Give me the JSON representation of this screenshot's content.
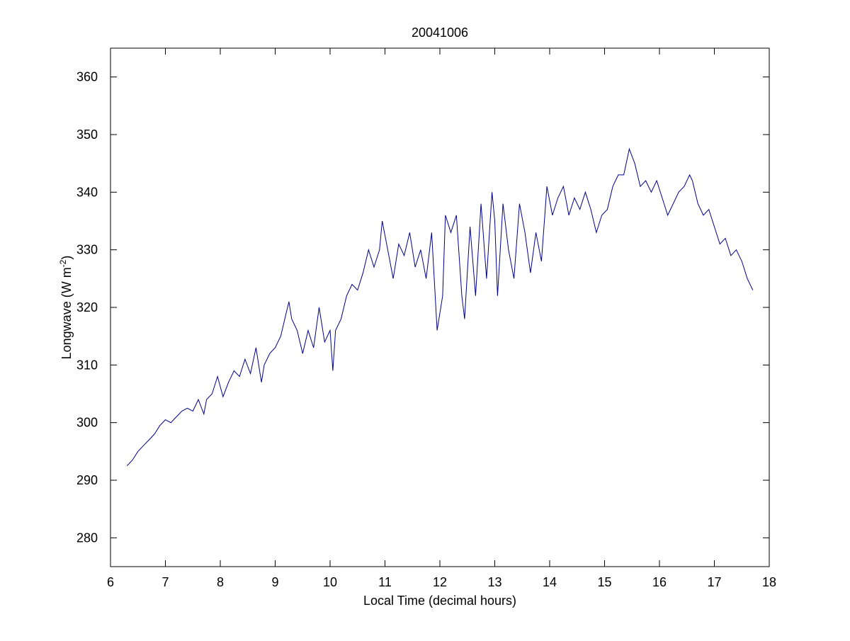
{
  "chart_data": {
    "type": "line",
    "title": "20041006",
    "xlabel": "Local Time (decimal hours)",
    "ylabel": "Longwave (W m",
    "ylabel_superscript": "-2",
    "ylabel_close": ")",
    "xlim": [
      6,
      18
    ],
    "ylim": [
      275,
      365
    ],
    "xticks": [
      6,
      7,
      8,
      9,
      10,
      11,
      12,
      13,
      14,
      15,
      16,
      17,
      18
    ],
    "yticks": [
      280,
      290,
      300,
      310,
      320,
      330,
      340,
      350,
      360
    ],
    "xtick_labels": [
      "6",
      "7",
      "8",
      "9",
      "10",
      "11",
      "12",
      "13",
      "14",
      "15",
      "16",
      "17",
      "18"
    ],
    "ytick_labels": [
      "280",
      "290",
      "300",
      "310",
      "320",
      "330",
      "340",
      "350",
      "360"
    ],
    "grid": false,
    "line_color": "#00008b",
    "series": [
      {
        "x": [
          6.3,
          6.4,
          6.5,
          6.6,
          6.7,
          6.8,
          6.9,
          7.0,
          7.1,
          7.2,
          7.3,
          7.4,
          7.5,
          7.6,
          7.7,
          7.75,
          7.85,
          7.95,
          8.05,
          8.15,
          8.25,
          8.35,
          8.45,
          8.55,
          8.65,
          8.75,
          8.8,
          8.9,
          9.0,
          9.1,
          9.2,
          9.25,
          9.3,
          9.4,
          9.5,
          9.6,
          9.7,
          9.8,
          9.9,
          10.0,
          10.05,
          10.1,
          10.2,
          10.3,
          10.4,
          10.5,
          10.6,
          10.7,
          10.8,
          10.9,
          10.95,
          11.05,
          11.15,
          11.25,
          11.35,
          11.45,
          11.55,
          11.65,
          11.75,
          11.85,
          11.95,
          12.05,
          12.1,
          12.2,
          12.3,
          12.4,
          12.45,
          12.55,
          12.65,
          12.75,
          12.85,
          12.95,
          13.0,
          13.05,
          13.15,
          13.25,
          13.35,
          13.45,
          13.55,
          13.65,
          13.75,
          13.85,
          13.95,
          14.05,
          14.15,
          14.25,
          14.35,
          14.45,
          14.55,
          14.65,
          14.75,
          14.85,
          14.95,
          15.05,
          15.15,
          15.25,
          15.35,
          15.45,
          15.55,
          15.65,
          15.75,
          15.85,
          15.95,
          16.05,
          16.15,
          16.25,
          16.35,
          16.45,
          16.55,
          16.6,
          16.7,
          16.8,
          16.9,
          17.0,
          17.1,
          17.2,
          17.3,
          17.4,
          17.5,
          17.6,
          17.7
        ],
        "y": [
          292.5,
          293.5,
          295.0,
          296.0,
          297.0,
          298.0,
          299.5,
          300.5,
          300.0,
          301.0,
          302.0,
          302.5,
          302.0,
          304.0,
          301.5,
          304.0,
          305.0,
          308.0,
          304.5,
          307.0,
          309.0,
          308.0,
          311.0,
          308.5,
          313.0,
          307.0,
          310.0,
          312.0,
          313.0,
          315.0,
          319.0,
          321.0,
          318.0,
          316.0,
          312.0,
          316.0,
          313.0,
          320.0,
          314.0,
          316.0,
          309.0,
          316.0,
          318.0,
          322.0,
          324.0,
          323.0,
          326.0,
          330.0,
          327.0,
          330.0,
          335.0,
          330.0,
          325.0,
          331.0,
          329.0,
          333.0,
          327.0,
          330.0,
          325.0,
          333.0,
          316.0,
          322.0,
          336.0,
          333.0,
          336.0,
          322.0,
          318.0,
          334.0,
          322.0,
          338.0,
          325.0,
          340.0,
          335.0,
          322.0,
          338.0,
          330.0,
          325.0,
          338.0,
          333.0,
          326.0,
          333.0,
          328.0,
          341.0,
          336.0,
          339.0,
          341.0,
          336.0,
          339.0,
          337.0,
          340.0,
          337.0,
          333.0,
          336.0,
          337.0,
          341.0,
          343.0,
          343.0,
          347.5,
          345.0,
          341.0,
          342.0,
          340.0,
          342.0,
          339.0,
          336.0,
          338.0,
          340.0,
          341.0,
          343.0,
          342.0,
          338.0,
          336.0,
          337.0,
          334.0,
          331.0,
          332.0,
          329.0,
          330.0,
          328.0,
          325.0,
          323.0
        ]
      }
    ]
  }
}
